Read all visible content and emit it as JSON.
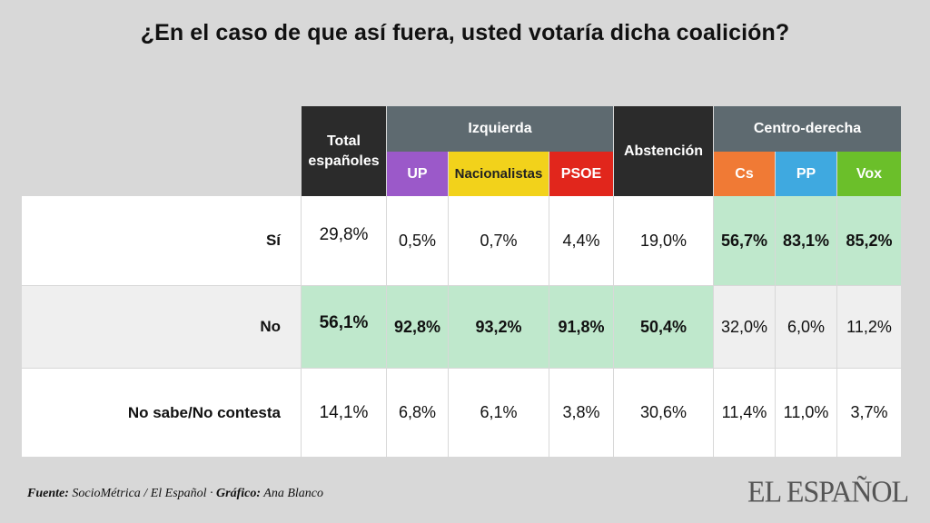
{
  "title": "¿En el caso de que así fuera, usted votaría dicha coalición?",
  "headers": {
    "total": "Total\nespañoles",
    "izquierda": "Izquierda",
    "abstencion": "Abstención",
    "centro_derecha": "Centro-derecha",
    "parties": [
      "UP",
      "Nacionalistas",
      "PSOE",
      "Cs",
      "PP",
      "Vox"
    ]
  },
  "colors": {
    "background": "#d8d8d8",
    "header_dark": "#2b2b2b",
    "header_slate": "#5e6a70",
    "UP": "#9b59c9",
    "Nacionalistas": "#f2d21b",
    "PSOE": "#e1261c",
    "Cs": "#f07a35",
    "PP": "#3fa9e0",
    "Vox": "#6bbf2a",
    "highlight": "#bfe8cc",
    "row_white": "#ffffff",
    "row_gray": "#efefef"
  },
  "footer": {
    "source_label": "Fuente:",
    "source_text": "SocioMétrica / El Español ·",
    "graphic_label": "Gráfico:",
    "graphic_text": "Ana Blanco"
  },
  "logo": "EL ESPAÑOL",
  "chart_data": {
    "type": "table",
    "title": "¿En el caso de que así fuera, usted votaría dicha coalición?",
    "columns": [
      "Total españoles",
      "UP",
      "Nacionalistas",
      "PSOE",
      "Abstención",
      "Cs",
      "PP",
      "Vox"
    ],
    "column_groups": [
      {
        "name": "Izquierda",
        "columns": [
          "UP",
          "Nacionalistas",
          "PSOE"
        ]
      },
      {
        "name": "Centro-derecha",
        "columns": [
          "Cs",
          "PP",
          "Vox"
        ]
      }
    ],
    "rows": [
      {
        "label": "Sí",
        "values": [
          "29,8%",
          "0,5%",
          "0,7%",
          "4,4%",
          "19,0%",
          "56,7%",
          "83,1%",
          "85,2%"
        ],
        "highlight": [
          false,
          false,
          false,
          false,
          false,
          true,
          true,
          true
        ]
      },
      {
        "label": "No",
        "values": [
          "56,1%",
          "92,8%",
          "93,2%",
          "91,8%",
          "50,4%",
          "32,0%",
          "6,0%",
          "11,2%"
        ],
        "highlight": [
          true,
          true,
          true,
          true,
          true,
          false,
          false,
          false
        ]
      },
      {
        "label": "No sabe/No contesta",
        "values": [
          "14,1%",
          "6,8%",
          "6,1%",
          "3,8%",
          "30,6%",
          "11,4%",
          "11,0%",
          "3,7%"
        ],
        "highlight": [
          false,
          false,
          false,
          false,
          false,
          false,
          false,
          false
        ]
      }
    ]
  }
}
